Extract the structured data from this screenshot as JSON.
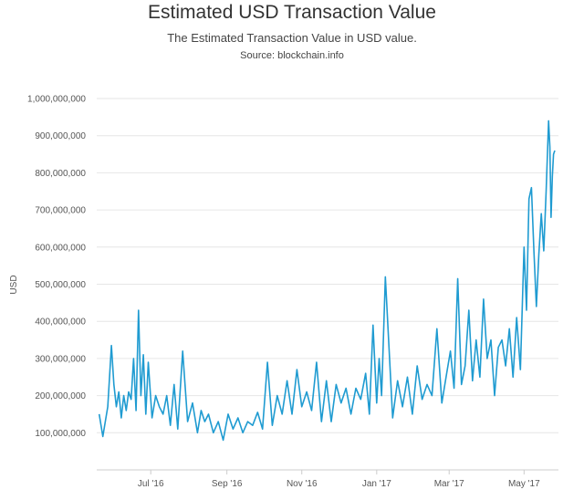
{
  "chart": {
    "title": "Estimated USD Transaction Value",
    "subtitle": "The Estimated Transaction Value in USD value.",
    "source": "Source: blockchain.info"
  },
  "colors": {
    "line": "#1f9bd1",
    "grid": "#e6e6e6",
    "axis": "#cccccc"
  },
  "chart_data": {
    "type": "line",
    "title": "Estimated USD Transaction Value",
    "subtitle": "The Estimated Transaction Value in USD value.",
    "ylabel": "USD",
    "ylim": [
      0,
      1000000000
    ],
    "ytick_values": [
      100000000,
      200000000,
      300000000,
      400000000,
      500000000,
      600000000,
      700000000,
      800000000,
      900000000,
      1000000000
    ],
    "ytick_labels": [
      "100,000,000",
      "200,000,000",
      "300,000,000",
      "400,000,000",
      "500,000,000",
      "600,000,000",
      "700,000,000",
      "800,000,000",
      "900,000,000",
      "1,000,000,000"
    ],
    "xlim": [
      "2016-05-18",
      "2017-05-29"
    ],
    "xtick_dates": [
      "2016-07-01",
      "2016-09-01",
      "2016-11-01",
      "2017-01-01",
      "2017-03-01",
      "2017-05-01"
    ],
    "xtick_labels": [
      "Jul '16",
      "Sep '16",
      "Nov '16",
      "Jan '17",
      "Mar '17",
      "May '17"
    ],
    "grid": true,
    "series": [
      {
        "x": [
          "2016-05-20",
          "2016-05-23",
          "2016-05-27",
          "2016-05-30",
          "2016-06-01",
          "2016-06-03",
          "2016-06-05",
          "2016-06-07",
          "2016-06-09",
          "2016-06-11",
          "2016-06-13",
          "2016-06-15",
          "2016-06-17",
          "2016-06-19",
          "2016-06-21",
          "2016-06-23",
          "2016-06-25",
          "2016-06-27",
          "2016-06-29",
          "2016-07-02",
          "2016-07-05",
          "2016-07-08",
          "2016-07-11",
          "2016-07-14",
          "2016-07-17",
          "2016-07-20",
          "2016-07-23",
          "2016-07-27",
          "2016-07-31",
          "2016-08-04",
          "2016-08-08",
          "2016-08-11",
          "2016-08-14",
          "2016-08-17",
          "2016-08-21",
          "2016-08-25",
          "2016-08-29",
          "2016-09-02",
          "2016-09-06",
          "2016-09-10",
          "2016-09-14",
          "2016-09-18",
          "2016-09-22",
          "2016-09-26",
          "2016-09-30",
          "2016-10-04",
          "2016-10-08",
          "2016-10-12",
          "2016-10-16",
          "2016-10-20",
          "2016-10-24",
          "2016-10-28",
          "2016-11-01",
          "2016-11-05",
          "2016-11-09",
          "2016-11-13",
          "2016-11-17",
          "2016-11-21",
          "2016-11-25",
          "2016-11-29",
          "2016-12-03",
          "2016-12-07",
          "2016-12-11",
          "2016-12-15",
          "2016-12-19",
          "2016-12-23",
          "2016-12-26",
          "2016-12-29",
          "2017-01-01",
          "2017-01-03",
          "2017-01-05",
          "2017-01-08",
          "2017-01-11",
          "2017-01-14",
          "2017-01-18",
          "2017-01-22",
          "2017-01-26",
          "2017-01-30",
          "2017-02-03",
          "2017-02-07",
          "2017-02-11",
          "2017-02-15",
          "2017-02-19",
          "2017-02-23",
          "2017-02-27",
          "2017-03-02",
          "2017-03-05",
          "2017-03-08",
          "2017-03-11",
          "2017-03-14",
          "2017-03-17",
          "2017-03-20",
          "2017-03-23",
          "2017-03-26",
          "2017-03-29",
          "2017-04-01",
          "2017-04-04",
          "2017-04-07",
          "2017-04-10",
          "2017-04-13",
          "2017-04-16",
          "2017-04-19",
          "2017-04-22",
          "2017-04-25",
          "2017-04-28",
          "2017-05-01",
          "2017-05-03",
          "2017-05-05",
          "2017-05-07",
          "2017-05-09",
          "2017-05-11",
          "2017-05-13",
          "2017-05-15",
          "2017-05-17",
          "2017-05-19",
          "2017-05-21",
          "2017-05-22",
          "2017-05-23",
          "2017-05-24",
          "2017-05-25",
          "2017-05-26"
        ],
        "values": [
          150000000,
          90000000,
          170000000,
          335000000,
          230000000,
          170000000,
          210000000,
          140000000,
          200000000,
          160000000,
          210000000,
          190000000,
          300000000,
          160000000,
          430000000,
          200000000,
          310000000,
          150000000,
          290000000,
          140000000,
          200000000,
          170000000,
          150000000,
          200000000,
          120000000,
          230000000,
          110000000,
          320000000,
          130000000,
          180000000,
          100000000,
          160000000,
          130000000,
          150000000,
          100000000,
          130000000,
          80000000,
          150000000,
          110000000,
          140000000,
          100000000,
          130000000,
          120000000,
          155000000,
          110000000,
          290000000,
          120000000,
          200000000,
          150000000,
          240000000,
          150000000,
          270000000,
          170000000,
          210000000,
          160000000,
          290000000,
          130000000,
          240000000,
          130000000,
          230000000,
          180000000,
          220000000,
          150000000,
          220000000,
          190000000,
          260000000,
          150000000,
          390000000,
          180000000,
          300000000,
          200000000,
          520000000,
          330000000,
          140000000,
          240000000,
          170000000,
          250000000,
          150000000,
          280000000,
          190000000,
          230000000,
          200000000,
          380000000,
          180000000,
          260000000,
          320000000,
          220000000,
          515000000,
          230000000,
          280000000,
          430000000,
          240000000,
          350000000,
          250000000,
          460000000,
          300000000,
          350000000,
          200000000,
          330000000,
          350000000,
          280000000,
          380000000,
          250000000,
          410000000,
          270000000,
          600000000,
          430000000,
          730000000,
          760000000,
          590000000,
          440000000,
          580000000,
          690000000,
          590000000,
          750000000,
          940000000,
          870000000,
          680000000,
          790000000,
          850000000,
          860000000
        ]
      }
    ]
  }
}
